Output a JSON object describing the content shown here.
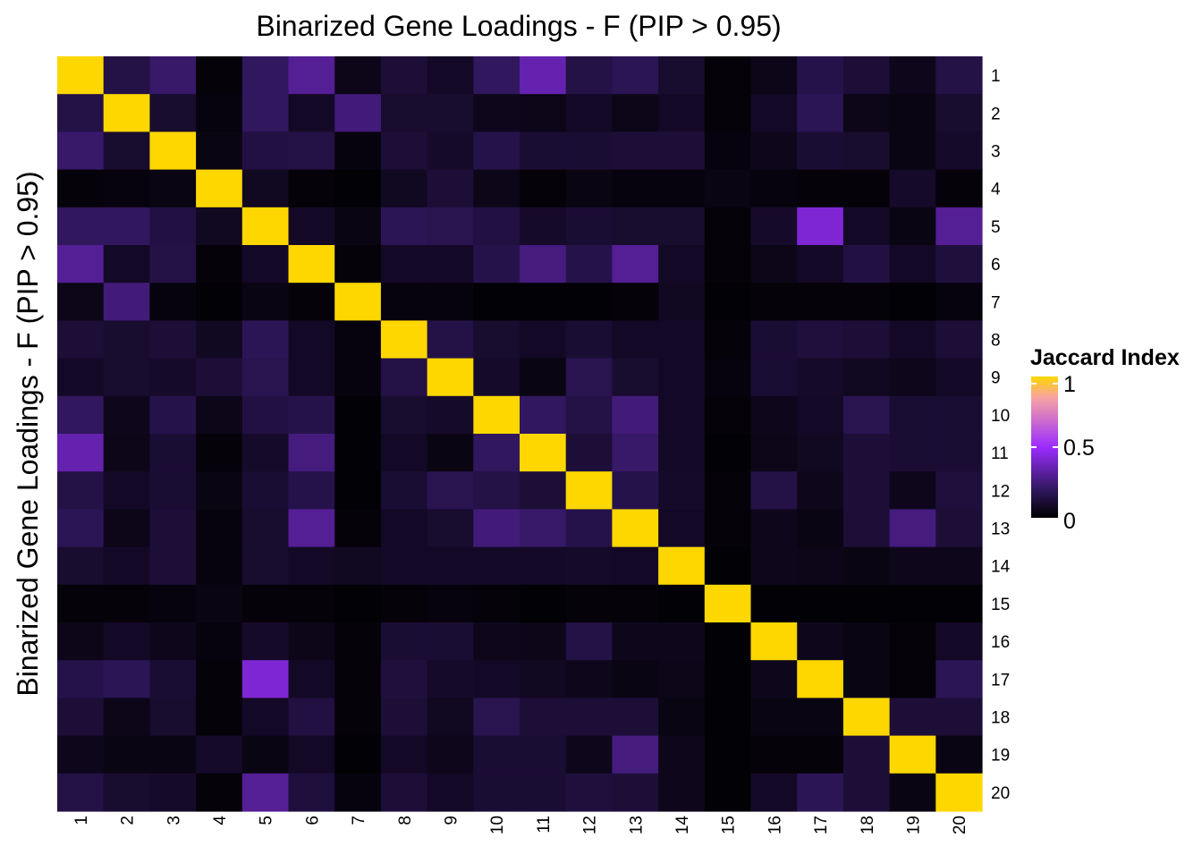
{
  "chart_data": {
    "type": "heatmap",
    "title": "Binarized Gene Loadings - F (PIP > 0.95)",
    "ylabel": "Binarized Gene Loadings - F (PIP > 0.95)",
    "xlabel": "",
    "x_categories": [
      "1",
      "2",
      "3",
      "4",
      "5",
      "6",
      "7",
      "8",
      "9",
      "10",
      "11",
      "12",
      "13",
      "14",
      "15",
      "16",
      "17",
      "18",
      "19",
      "20"
    ],
    "y_categories": [
      "1",
      "2",
      "3",
      "4",
      "5",
      "6",
      "7",
      "8",
      "9",
      "10",
      "11",
      "12",
      "13",
      "14",
      "15",
      "16",
      "17",
      "18",
      "19",
      "20"
    ],
    "values": [
      [
        1.0,
        0.15,
        0.22,
        0.02,
        0.2,
        0.3,
        0.05,
        0.12,
        0.08,
        0.2,
        0.35,
        0.15,
        0.18,
        0.1,
        0.02,
        0.05,
        0.16,
        0.12,
        0.06,
        0.15
      ],
      [
        0.15,
        1.0,
        0.1,
        0.03,
        0.2,
        0.08,
        0.25,
        0.1,
        0.1,
        0.06,
        0.05,
        0.08,
        0.05,
        0.08,
        0.02,
        0.08,
        0.18,
        0.05,
        0.04,
        0.1
      ],
      [
        0.22,
        0.1,
        1.0,
        0.04,
        0.14,
        0.15,
        0.03,
        0.12,
        0.09,
        0.16,
        0.11,
        0.11,
        0.12,
        0.12,
        0.03,
        0.06,
        0.11,
        0.1,
        0.04,
        0.09
      ],
      [
        0.02,
        0.03,
        0.04,
        1.0,
        0.07,
        0.02,
        0.01,
        0.07,
        0.12,
        0.05,
        0.02,
        0.04,
        0.03,
        0.03,
        0.04,
        0.03,
        0.02,
        0.02,
        0.09,
        0.02
      ],
      [
        0.2,
        0.2,
        0.14,
        0.07,
        1.0,
        0.08,
        0.04,
        0.18,
        0.17,
        0.14,
        0.09,
        0.11,
        0.1,
        0.1,
        0.02,
        0.09,
        0.42,
        0.08,
        0.04,
        0.3
      ],
      [
        0.3,
        0.08,
        0.15,
        0.02,
        0.08,
        1.0,
        0.02,
        0.08,
        0.08,
        0.16,
        0.26,
        0.16,
        0.3,
        0.08,
        0.02,
        0.05,
        0.08,
        0.14,
        0.08,
        0.13
      ],
      [
        0.05,
        0.25,
        0.03,
        0.01,
        0.04,
        0.02,
        1.0,
        0.03,
        0.03,
        0.01,
        0.01,
        0.01,
        0.02,
        0.07,
        0.01,
        0.02,
        0.02,
        0.02,
        0.01,
        0.03
      ],
      [
        0.12,
        0.1,
        0.12,
        0.07,
        0.18,
        0.08,
        0.03,
        1.0,
        0.15,
        0.1,
        0.08,
        0.11,
        0.08,
        0.08,
        0.02,
        0.11,
        0.13,
        0.12,
        0.08,
        0.12
      ],
      [
        0.08,
        0.1,
        0.09,
        0.12,
        0.17,
        0.08,
        0.03,
        0.15,
        1.0,
        0.09,
        0.04,
        0.17,
        0.1,
        0.08,
        0.03,
        0.11,
        0.09,
        0.07,
        0.06,
        0.08
      ],
      [
        0.2,
        0.06,
        0.16,
        0.05,
        0.14,
        0.16,
        0.01,
        0.1,
        0.09,
        1.0,
        0.2,
        0.15,
        0.25,
        0.08,
        0.02,
        0.06,
        0.08,
        0.17,
        0.11,
        0.11
      ],
      [
        0.35,
        0.05,
        0.11,
        0.02,
        0.09,
        0.26,
        0.01,
        0.08,
        0.04,
        0.2,
        1.0,
        0.12,
        0.22,
        0.08,
        0.01,
        0.05,
        0.07,
        0.12,
        0.11,
        0.11
      ],
      [
        0.15,
        0.08,
        0.11,
        0.04,
        0.11,
        0.16,
        0.01,
        0.11,
        0.17,
        0.15,
        0.12,
        1.0,
        0.16,
        0.09,
        0.02,
        0.15,
        0.06,
        0.12,
        0.06,
        0.13
      ],
      [
        0.18,
        0.05,
        0.12,
        0.03,
        0.1,
        0.3,
        0.02,
        0.08,
        0.1,
        0.25,
        0.22,
        0.16,
        1.0,
        0.08,
        0.02,
        0.06,
        0.04,
        0.12,
        0.26,
        0.12
      ],
      [
        0.1,
        0.08,
        0.12,
        0.03,
        0.1,
        0.08,
        0.07,
        0.08,
        0.08,
        0.08,
        0.08,
        0.09,
        0.08,
        1.0,
        0.01,
        0.06,
        0.05,
        0.04,
        0.06,
        0.06
      ],
      [
        0.02,
        0.02,
        0.03,
        0.04,
        0.02,
        0.02,
        0.01,
        0.02,
        0.03,
        0.02,
        0.01,
        0.02,
        0.02,
        0.01,
        1.0,
        0.01,
        0.01,
        0.01,
        0.01,
        0.01
      ],
      [
        0.05,
        0.08,
        0.06,
        0.03,
        0.09,
        0.05,
        0.02,
        0.11,
        0.11,
        0.06,
        0.05,
        0.15,
        0.06,
        0.06,
        0.01,
        1.0,
        0.06,
        0.04,
        0.02,
        0.08
      ],
      [
        0.16,
        0.18,
        0.11,
        0.02,
        0.42,
        0.08,
        0.02,
        0.13,
        0.09,
        0.08,
        0.07,
        0.06,
        0.04,
        0.05,
        0.01,
        0.06,
        1.0,
        0.04,
        0.02,
        0.18
      ],
      [
        0.12,
        0.05,
        0.1,
        0.02,
        0.08,
        0.14,
        0.02,
        0.12,
        0.07,
        0.17,
        0.12,
        0.12,
        0.12,
        0.04,
        0.01,
        0.04,
        0.04,
        1.0,
        0.12,
        0.12
      ],
      [
        0.06,
        0.04,
        0.04,
        0.09,
        0.04,
        0.08,
        0.01,
        0.08,
        0.06,
        0.11,
        0.11,
        0.06,
        0.26,
        0.06,
        0.01,
        0.02,
        0.02,
        0.12,
        1.0,
        0.04
      ],
      [
        0.15,
        0.1,
        0.09,
        0.02,
        0.3,
        0.13,
        0.03,
        0.12,
        0.08,
        0.11,
        0.11,
        0.13,
        0.12,
        0.06,
        0.01,
        0.08,
        0.18,
        0.12,
        0.04,
        1.0
      ]
    ],
    "colorbar": {
      "title": "Jaccard Index",
      "min": 0,
      "max": 1,
      "ticks": [
        0,
        0.5,
        1
      ],
      "tick_labels": [
        "0",
        "0.5",
        "1"
      ],
      "colors": [
        "#000000",
        "#30175e",
        "#9b2cff",
        "#f7a3a3",
        "#ffd700"
      ]
    },
    "legend_position": "right",
    "grid": false
  }
}
